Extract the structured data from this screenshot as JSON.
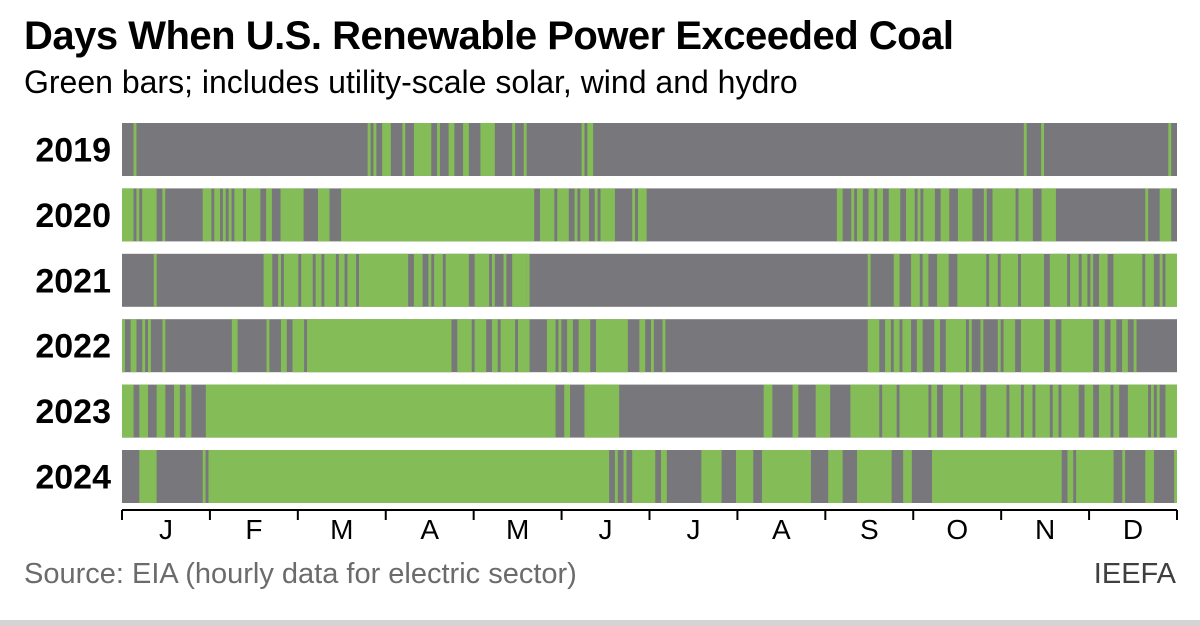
{
  "title": "Days When U.S. Renewable Power Exceeded Coal",
  "subtitle": "Green bars; includes utility-scale solar, wind and hydro",
  "source": "Source: EIA (hourly data for electric sector)",
  "credit": "IEEFA",
  "colors": {
    "renewable_exceeded": "#84bd58",
    "coal_exceeded": "#78777b",
    "axis": "#000000"
  },
  "chart_data": {
    "type": "heatmap",
    "title": "Days When U.S. Renewable Power Exceeded Coal",
    "subtitle": "Green bars; includes utility-scale solar, wind and hydro",
    "xlabel": "",
    "ylabel": "",
    "x_tick_labels": [
      "J",
      "F",
      "M",
      "A",
      "M",
      "J",
      "J",
      "A",
      "S",
      "O",
      "N",
      "D"
    ],
    "y_categories": [
      "2019",
      "2020",
      "2021",
      "2022",
      "2023",
      "2024"
    ],
    "legend": [
      {
        "name": "Green bars",
        "color": "#84bd58"
      }
    ],
    "rows": [
      {
        "year": "2019",
        "days": 365,
        "green_ranges": [
          [
            5,
            5
          ],
          [
            86,
            86
          ],
          [
            88,
            88
          ],
          [
            91,
            93
          ],
          [
            98,
            98
          ],
          [
            102,
            107
          ],
          [
            110,
            110
          ],
          [
            114,
            115
          ],
          [
            119,
            120
          ],
          [
            125,
            129
          ],
          [
            136,
            136
          ],
          [
            140,
            140
          ],
          [
            160,
            160
          ],
          [
            162,
            163
          ],
          [
            313,
            313
          ],
          [
            319,
            319
          ],
          [
            363,
            363
          ]
        ]
      },
      {
        "year": "2020",
        "days": 366,
        "green_ranges": [
          [
            1,
            4
          ],
          [
            6,
            6
          ],
          [
            8,
            12
          ],
          [
            15,
            15
          ],
          [
            29,
            31
          ],
          [
            33,
            34
          ],
          [
            36,
            36
          ],
          [
            38,
            38
          ],
          [
            40,
            42
          ],
          [
            44,
            48
          ],
          [
            51,
            52
          ],
          [
            56,
            63
          ],
          [
            69,
            72
          ],
          [
            77,
            143
          ],
          [
            146,
            150
          ],
          [
            152,
            155
          ],
          [
            158,
            158
          ],
          [
            160,
            162
          ],
          [
            165,
            165
          ],
          [
            167,
            171
          ],
          [
            178,
            178
          ],
          [
            180,
            182
          ],
          [
            249,
            250
          ],
          [
            254,
            254
          ],
          [
            256,
            257
          ],
          [
            260,
            261
          ],
          [
            263,
            264
          ],
          [
            267,
            270
          ],
          [
            273,
            275
          ],
          [
            277,
            277
          ],
          [
            279,
            282
          ],
          [
            285,
            287
          ],
          [
            291,
            295
          ],
          [
            300,
            300
          ],
          [
            303,
            310
          ],
          [
            312,
            316
          ],
          [
            320,
            324
          ],
          [
            356,
            356
          ],
          [
            361,
            364
          ]
        ]
      },
      {
        "year": "2021",
        "days": 365,
        "green_ranges": [
          [
            12,
            12
          ],
          [
            50,
            52
          ],
          [
            55,
            55
          ],
          [
            57,
            61
          ],
          [
            63,
            66
          ],
          [
            68,
            69
          ],
          [
            71,
            74
          ],
          [
            76,
            77
          ],
          [
            79,
            81
          ],
          [
            83,
            99
          ],
          [
            102,
            104
          ],
          [
            107,
            107
          ],
          [
            109,
            111
          ],
          [
            113,
            120
          ],
          [
            123,
            127
          ],
          [
            129,
            129
          ],
          [
            133,
            133
          ],
          [
            136,
            140
          ],
          [
            141,
            141
          ],
          [
            259,
            259
          ],
          [
            268,
            269
          ],
          [
            274,
            276
          ],
          [
            278,
            279
          ],
          [
            283,
            286
          ],
          [
            290,
            299
          ],
          [
            301,
            303
          ],
          [
            305,
            310
          ],
          [
            312,
            319
          ],
          [
            322,
            327
          ],
          [
            329,
            331
          ],
          [
            333,
            334
          ],
          [
            336,
            336
          ],
          [
            339,
            341
          ],
          [
            344,
            353
          ],
          [
            355,
            357
          ],
          [
            360,
            360
          ],
          [
            362,
            365
          ]
        ]
      },
      {
        "year": "2022",
        "days": 365,
        "green_ranges": [
          [
            1,
            1
          ],
          [
            4,
            5
          ],
          [
            8,
            8
          ],
          [
            10,
            10
          ],
          [
            15,
            15
          ],
          [
            39,
            40
          ],
          [
            51,
            51
          ],
          [
            56,
            57
          ],
          [
            60,
            63
          ],
          [
            65,
            114
          ],
          [
            117,
            121
          ],
          [
            123,
            126
          ],
          [
            129,
            130
          ],
          [
            132,
            136
          ],
          [
            138,
            141
          ],
          [
            148,
            150
          ],
          [
            152,
            152
          ],
          [
            155,
            156
          ],
          [
            159,
            162
          ],
          [
            165,
            175
          ],
          [
            180,
            181
          ],
          [
            184,
            184
          ],
          [
            188,
            188
          ],
          [
            259,
            262
          ],
          [
            265,
            266
          ],
          [
            268,
            269
          ],
          [
            271,
            273
          ],
          [
            276,
            277
          ],
          [
            282,
            283
          ],
          [
            286,
            292
          ],
          [
            294,
            294
          ],
          [
            298,
            298
          ],
          [
            304,
            304
          ],
          [
            306,
            309
          ],
          [
            312,
            319
          ],
          [
            322,
            323
          ],
          [
            326,
            336
          ],
          [
            339,
            340
          ],
          [
            343,
            344
          ],
          [
            347,
            348
          ],
          [
            351,
            351
          ]
        ]
      },
      {
        "year": "2023",
        "days": 365,
        "green_ranges": [
          [
            1,
            4
          ],
          [
            7,
            9
          ],
          [
            13,
            15
          ],
          [
            19,
            20
          ],
          [
            23,
            24
          ],
          [
            30,
            150
          ],
          [
            154,
            155
          ],
          [
            161,
            172
          ],
          [
            223,
            225
          ],
          [
            233,
            234
          ],
          [
            241,
            245
          ],
          [
            253,
            262
          ],
          [
            264,
            268
          ],
          [
            270,
            279
          ],
          [
            281,
            282
          ],
          [
            285,
            290
          ],
          [
            292,
            297
          ],
          [
            300,
            306
          ],
          [
            308,
            311
          ],
          [
            313,
            315
          ],
          [
            317,
            321
          ],
          [
            323,
            324
          ],
          [
            326,
            331
          ],
          [
            334,
            336
          ],
          [
            339,
            342
          ],
          [
            344,
            345
          ],
          [
            349,
            355
          ],
          [
            357,
            357
          ],
          [
            359,
            359
          ],
          [
            362,
            365
          ]
        ]
      },
      {
        "year": "2024",
        "days": 366,
        "green_ranges": [
          [
            7,
            12
          ],
          [
            29,
            29
          ],
          [
            31,
            169
          ],
          [
            172,
            172
          ],
          [
            175,
            175
          ],
          [
            178,
            185
          ],
          [
            188,
            189
          ],
          [
            202,
            208
          ],
          [
            214,
            219
          ],
          [
            223,
            239
          ],
          [
            246,
            250
          ],
          [
            256,
            267
          ],
          [
            272,
            274
          ],
          [
            282,
            326
          ],
          [
            329,
            330
          ],
          [
            332,
            344
          ],
          [
            348,
            348
          ],
          [
            356,
            358
          ],
          [
            366,
            366
          ]
        ]
      }
    ]
  }
}
